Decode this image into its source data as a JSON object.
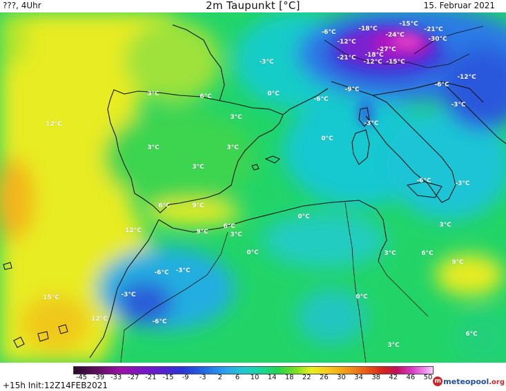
{
  "header": {
    "left": "???, 4Uhr",
    "title": "2m Taupunkt [°C]",
    "date": "15. Februar 2021"
  },
  "map": {
    "variable": "2m dew point",
    "unit": "°C",
    "labels": [
      {
        "text": "-6°C"
      },
      {
        "text": "-18°C"
      },
      {
        "text": "-15°C"
      },
      {
        "text": "-21°C"
      },
      {
        "text": "-24°C"
      },
      {
        "text": "-30°C"
      },
      {
        "text": "-12°C"
      },
      {
        "text": "-27°C"
      },
      {
        "text": "-21°C"
      },
      {
        "text": "-18°C"
      },
      {
        "text": "-12°C"
      },
      {
        "text": "-15°C"
      },
      {
        "text": "-3°C"
      },
      {
        "text": "-12°C"
      },
      {
        "text": "-6°C"
      },
      {
        "text": "-9°C"
      },
      {
        "text": "-6°C"
      },
      {
        "text": "-3°C"
      },
      {
        "text": "0°C"
      },
      {
        "text": "3°C"
      },
      {
        "text": "6°C"
      },
      {
        "text": "3°C"
      },
      {
        "text": "12°C"
      },
      {
        "text": "3°C"
      },
      {
        "text": "3°C"
      },
      {
        "text": "-3°C"
      },
      {
        "text": "0°C"
      },
      {
        "text": "3°C"
      },
      {
        "text": "-6°C"
      },
      {
        "text": "-3°C"
      },
      {
        "text": "6°C"
      },
      {
        "text": "9°C"
      },
      {
        "text": "12°C"
      },
      {
        "text": "0°C"
      },
      {
        "text": "9°C"
      },
      {
        "text": "6°C"
      },
      {
        "text": "3°C"
      },
      {
        "text": "3°C"
      },
      {
        "text": "0°C"
      },
      {
        "text": "3°C"
      },
      {
        "text": "6°C"
      },
      {
        "text": "9°C"
      },
      {
        "text": "-6°C"
      },
      {
        "text": "-3°C"
      },
      {
        "text": "-3°C"
      },
      {
        "text": "15°C"
      },
      {
        "text": "12°C"
      },
      {
        "text": "-6°C"
      },
      {
        "text": "0°C"
      },
      {
        "text": "3°C"
      },
      {
        "text": "6°C"
      }
    ]
  },
  "colorbar": {
    "ticks": [
      "-45",
      "-39",
      "-33",
      "-27",
      "-21",
      "-15",
      "-9",
      "-3",
      "2",
      "6",
      "10",
      "14",
      "18",
      "22",
      "26",
      "30",
      "34",
      "38",
      "42",
      "46",
      "50"
    ]
  },
  "footer": {
    "left": "+15h Init:12Z14FEB2021",
    "logo_main": "meteopool",
    "logo_suffix": ".org",
    "logo_accent": "#c8282a",
    "logo_blue": "#1f4e9a"
  }
}
